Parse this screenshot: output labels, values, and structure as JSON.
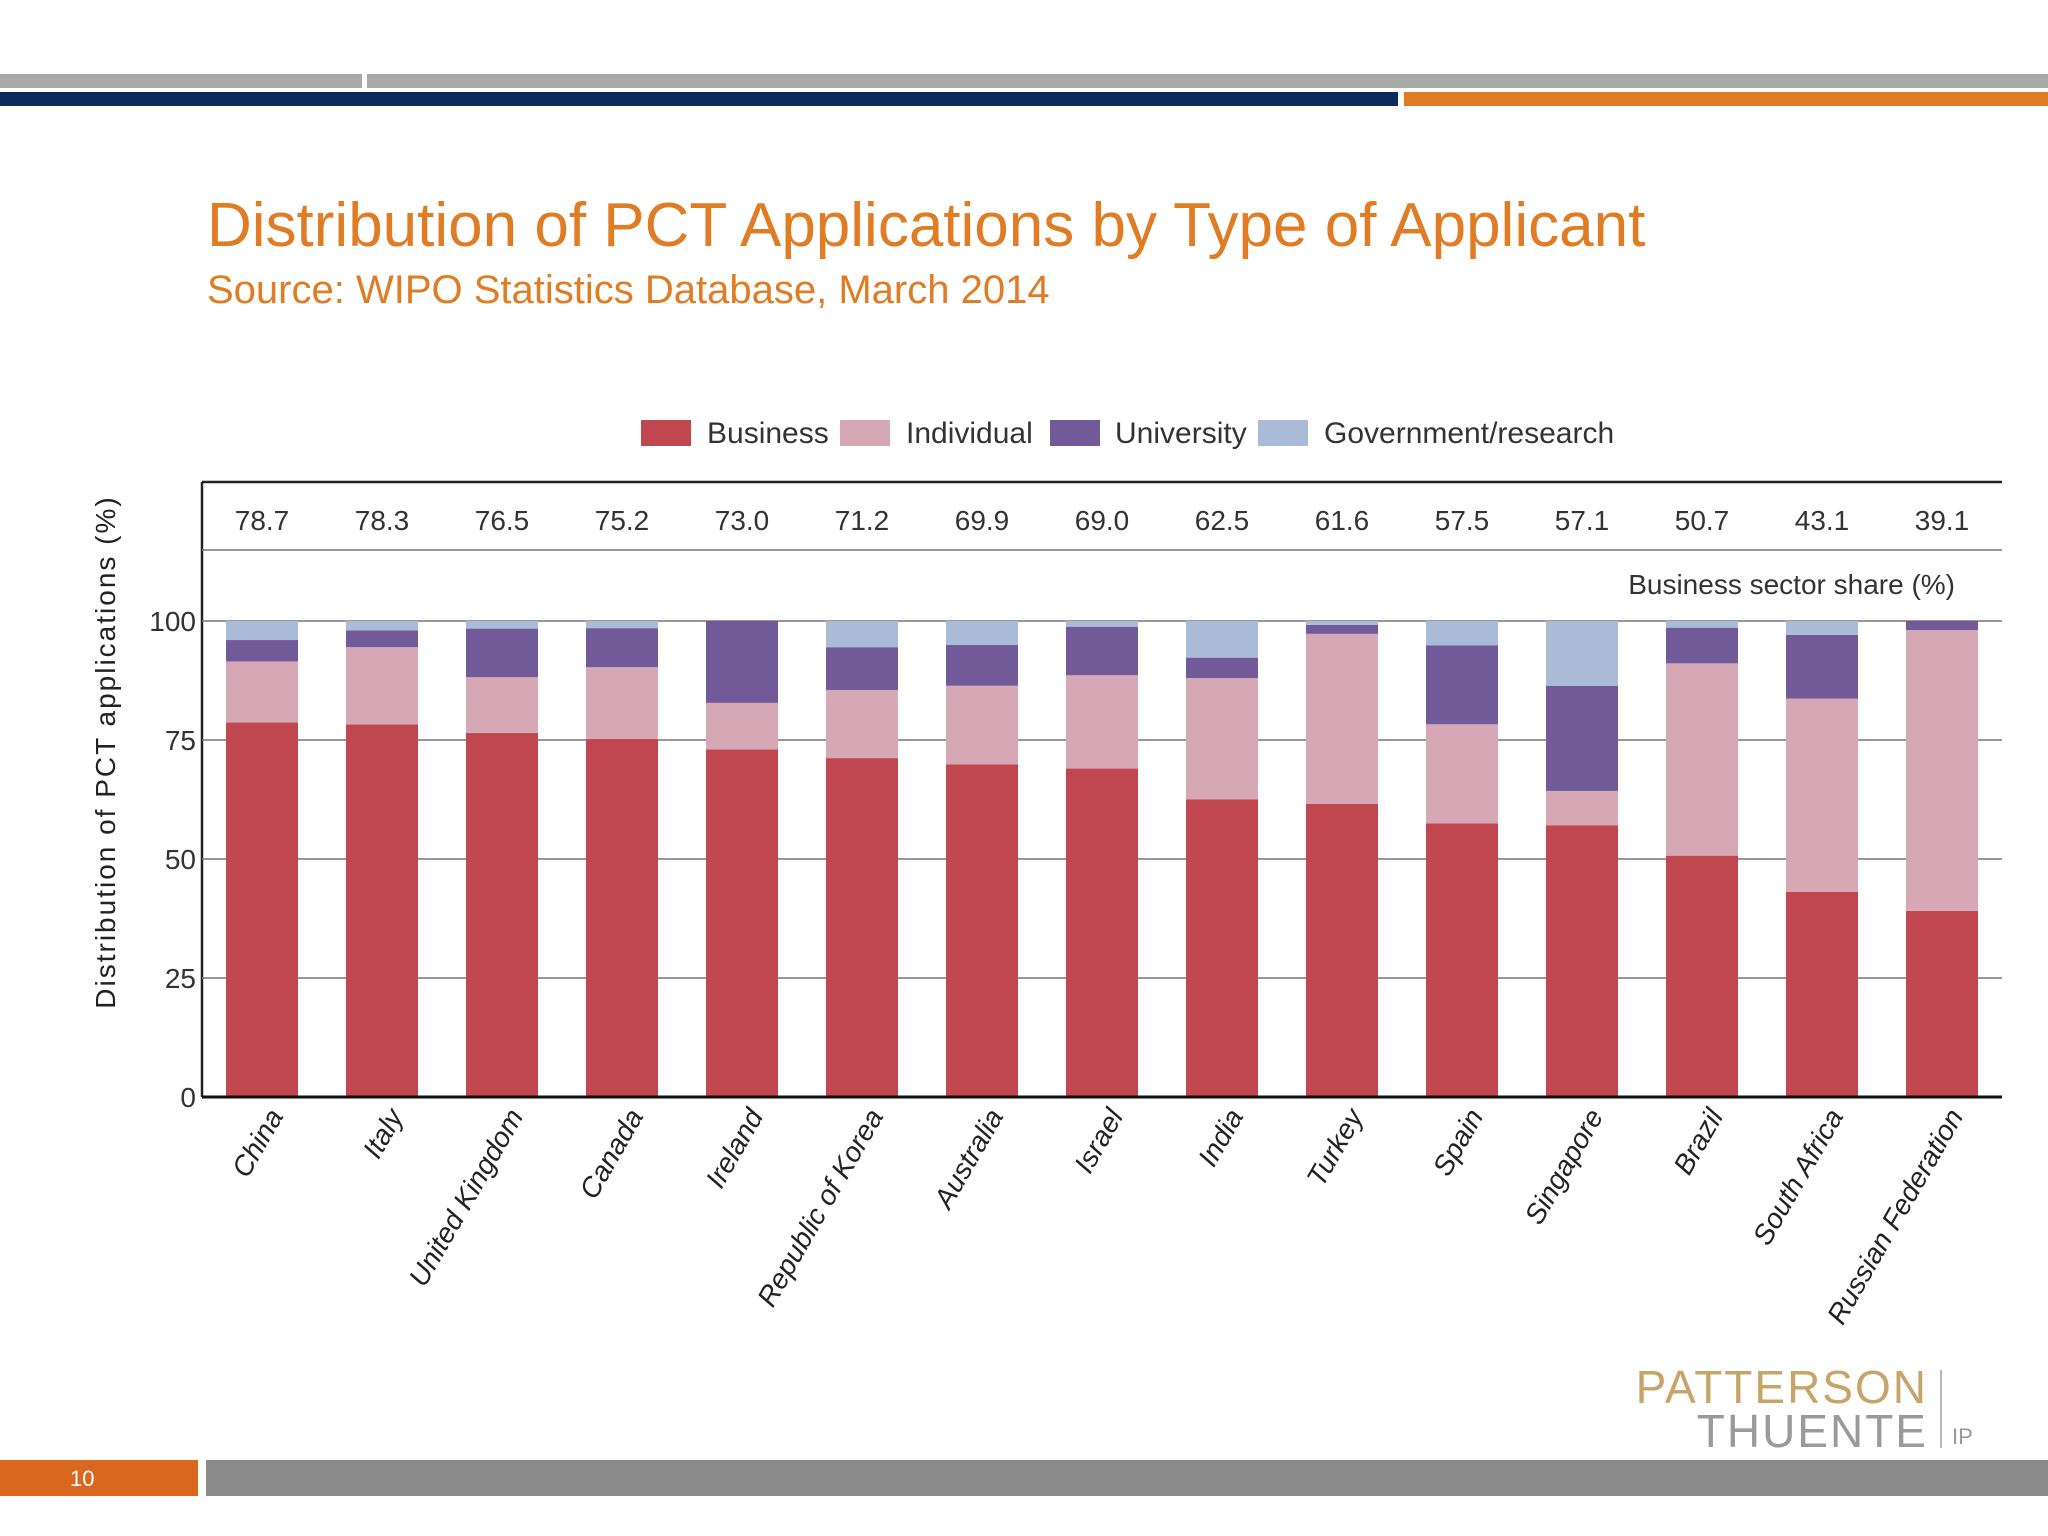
{
  "slide": {
    "title": "Distribution of PCT Applications by Type of Applicant",
    "subtitle": "Source:  WIPO Statistics Database, March 2014",
    "page_number": "10",
    "logo": {
      "line1": "PATTERSON",
      "line2": "THUENTE",
      "suffix": "IP"
    },
    "colors": {
      "accent_orange": "#E07C24",
      "navy": "#0D2C5B",
      "gray_band": "#A7A9A6",
      "page_box": "#D9671E",
      "footer_gray": "#8C8C8C"
    }
  },
  "chart_data": {
    "type": "bar",
    "stacked": true,
    "categories": [
      "China",
      "Italy",
      "United Kingdom",
      "Canada",
      "Ireland",
      "Republic of Korea",
      "Australia",
      "Israel",
      "India",
      "Turkey",
      "Spain",
      "Singapore",
      "Brazil",
      "South Africa",
      "Russian Federation"
    ],
    "series": [
      {
        "name": "Business",
        "color": "#C0474F",
        "values": [
          78.7,
          78.3,
          76.5,
          75.2,
          73.0,
          71.2,
          69.9,
          69.0,
          62.5,
          61.6,
          57.5,
          57.1,
          50.7,
          43.1,
          39.1
        ]
      },
      {
        "name": "Individual",
        "color": "#D6A8B6",
        "values": [
          12.8,
          16.2,
          11.7,
          15.1,
          9.8,
          14.3,
          16.5,
          19.6,
          25.5,
          35.7,
          20.8,
          7.2,
          40.4,
          40.6,
          59.0
        ]
      },
      {
        "name": "University",
        "color": "#715A97",
        "values": [
          4.5,
          3.5,
          10.2,
          8.2,
          17.2,
          9.0,
          8.6,
          10.2,
          4.3,
          1.9,
          16.6,
          22.1,
          7.5,
          13.4,
          1.9
        ]
      },
      {
        "name": "Government/research",
        "color": "#AABBD8",
        "values": [
          4.0,
          2.0,
          1.6,
          1.5,
          0.0,
          5.5,
          5.0,
          1.2,
          7.7,
          0.8,
          5.1,
          13.6,
          1.4,
          2.9,
          0.0
        ]
      }
    ],
    "top_labels": [
      "78.7",
      "78.3",
      "76.5",
      "75.2",
      "73.0",
      "71.2",
      "69.9",
      "69.0",
      "62.5",
      "61.6",
      "57.5",
      "57.1",
      "50.7",
      "43.1",
      "39.1"
    ],
    "top_labels_caption": "Business sector share (%)",
    "ylabel": "Distribution of PCT applications (%)",
    "yticks": [
      "0",
      "25",
      "50",
      "75",
      "100"
    ],
    "ylim": [
      0,
      100
    ],
    "grid": true,
    "legend_position": "top-center"
  }
}
